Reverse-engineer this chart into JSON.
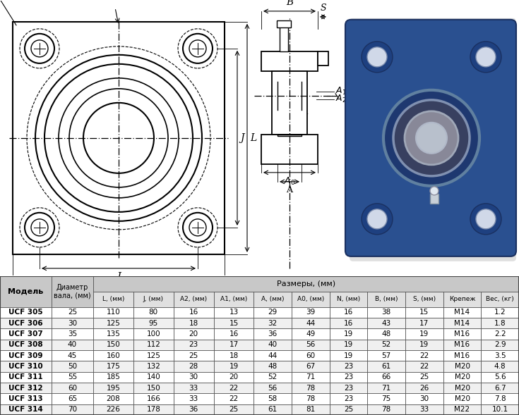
{
  "table_header_row2": [
    "Модель",
    "Диаметр\nвала, (мм)",
    "L, (мм)",
    "J, (мм)",
    "A2, (мм)",
    "A1, (мм)",
    "A, (мм)",
    "A0, (мм)",
    "N, (мм)",
    "B, (мм)",
    "S, (мм)",
    "Крепеж",
    "Вес, (кг)"
  ],
  "rows": [
    [
      "UCF 305",
      "25",
      "110",
      "80",
      "16",
      "13",
      "29",
      "39",
      "16",
      "38",
      "15",
      "M14",
      "1.2"
    ],
    [
      "UCF 306",
      "30",
      "125",
      "95",
      "18",
      "15",
      "32",
      "44",
      "16",
      "43",
      "17",
      "M14",
      "1.8"
    ],
    [
      "UCF 307",
      "35",
      "135",
      "100",
      "20",
      "16",
      "36",
      "49",
      "19",
      "48",
      "19",
      "M16",
      "2.2"
    ],
    [
      "UCF 308",
      "40",
      "150",
      "112",
      "23",
      "17",
      "40",
      "56",
      "19",
      "52",
      "19",
      "M16",
      "2.9"
    ],
    [
      "UCF 309",
      "45",
      "160",
      "125",
      "25",
      "18",
      "44",
      "60",
      "19",
      "57",
      "22",
      "M16",
      "3.5"
    ],
    [
      "UCF 310",
      "50",
      "175",
      "132",
      "28",
      "19",
      "48",
      "67",
      "23",
      "61",
      "22",
      "M20",
      "4.8"
    ],
    [
      "UCF 311",
      "55",
      "185",
      "140",
      "30",
      "20",
      "52",
      "71",
      "23",
      "66",
      "25",
      "M20",
      "5.6"
    ],
    [
      "UCF 312",
      "60",
      "195",
      "150",
      "33",
      "22",
      "56",
      "78",
      "23",
      "71",
      "26",
      "M20",
      "6.7"
    ],
    [
      "UCF 313",
      "65",
      "208",
      "166",
      "33",
      "22",
      "58",
      "78",
      "23",
      "75",
      "30",
      "M20",
      "7.8"
    ],
    [
      "UCF 314",
      "70",
      "226",
      "178",
      "36",
      "25",
      "61",
      "81",
      "25",
      "78",
      "33",
      "M22",
      "10.1"
    ]
  ],
  "bg_color_header": "#c8c8c8",
  "bg_color_subheader": "#e0e0e0",
  "bg_color_row_even": "#ffffff",
  "bg_color_row_odd": "#f0f0f0",
  "border_color": "#444444",
  "text_color": "#000000"
}
